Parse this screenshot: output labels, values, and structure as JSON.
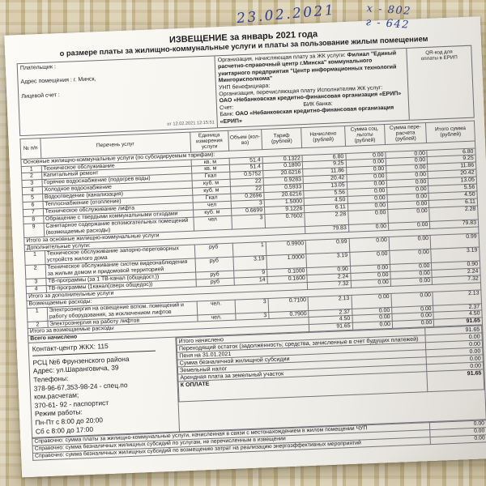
{
  "handwriting": {
    "date": "23.02.2021",
    "note_line1": "х - 802",
    "note_line2": "г - 642"
  },
  "title": {
    "line1": "ИЗВЕЩЕНИЕ за январь 2021 года",
    "line2": "о размере платы за  жилищно-коммунальные услуги и платы за пользование жилым помещением"
  },
  "payer": {
    "payer_label": "Плательщик :",
    "address_label": "Адрес помещения : г. Минск,",
    "account_label": "Лицевой счет :",
    "print_timestamp": "от 12.02.2021 12:15:51"
  },
  "organization": {
    "charging_label": "Организация, начисляющая плату за ЖК услуги:",
    "charging_name": "Филиал \"Единый расчетно-справочный центр г.Минска\" коммунального унитарного предприятия \"Центр информационных технологий Мингорисполкома\"",
    "unp_label": "УНП бенефициара:",
    "transfer_label": "Организация, перечисляющая плату Исполнителям ЖК услуг:",
    "transfer_name": "ОАО «Небанковская кредитно-финансовая организация «ЕРИП»",
    "account_label": "Счет:",
    "bik_label": "БИК банка:",
    "bank_label": "Банк:",
    "bank_name": "ОАО «Небанковская кредитно-финансовая организация «ЕРИП»"
  },
  "qr": {
    "label1": "QR-код для",
    "label2": "оплаты в ЕРИП"
  },
  "table": {
    "headers": [
      "№ п/п",
      "Перечень услуг",
      "Единица измерения услуги",
      "Объем (кол-во)",
      "Тариф (рублей)",
      "Начислено (рублей)",
      "Сумма соц. льготы (рублей)",
      "Сумма пере- расчета (рублей)",
      "Итого сумма (рублей)"
    ],
    "sections": [
      {
        "header": "Основные жилищно-коммунальные услуги (по субсидируемым тарифам):",
        "rows": [
          {
            "num": "1",
            "name": "Техническое обслуживание",
            "unit": "кв. м",
            "volume": "51.4",
            "tariff": "0.1322",
            "accrued": "6.80",
            "benefit": "0.00",
            "recalc": "0.00",
            "total": "6.80"
          },
          {
            "num": "2",
            "name": "Капитальный ремонт",
            "unit": "кв. м",
            "volume": "51.4",
            "tariff": "0.1800",
            "accrued": "9.25",
            "benefit": "0.00",
            "recalc": "0.00",
            "total": "9.25"
          },
          {
            "num": "3",
            "name": "Горячее водоснабжение (подогрев воды)",
            "unit": "Гкал",
            "volume": "0.5752",
            "tariff": "20.6216",
            "accrued": "11.86",
            "benefit": "0.00",
            "recalc": "0.00",
            "total": "11.86"
          },
          {
            "num": "4",
            "name": "Холодное водоснабжение",
            "unit": "куб. м",
            "volume": "22",
            "tariff": "0.9283",
            "accrued": "20.42",
            "benefit": "0.00",
            "recalc": "0.00",
            "total": "20.42"
          },
          {
            "num": "5",
            "name": "Водоотведение (канализация)",
            "unit": "куб. м",
            "volume": "22",
            "tariff": "0.5933",
            "accrued": "13.05",
            "benefit": "0.00",
            "recalc": "0.00",
            "total": "13.05"
          },
          {
            "num": "6",
            "name": "Теплоснабжение (отопление)",
            "unit": "Гкал",
            "volume": "0.2696",
            "tariff": "20.6216",
            "accrued": "5.56",
            "benefit": "0.00",
            "recalc": "0.00",
            "total": "5.56"
          },
          {
            "num": "7",
            "name": "Техническое обслуживание лифта",
            "unit": "чел",
            "volume": "3",
            "tariff": "1.5000",
            "accrued": "4.50",
            "benefit": "0.00",
            "recalc": "0.00",
            "total": "4.50"
          },
          {
            "num": "8",
            "name": "Обращение с твердыми коммунальными отходами",
            "unit": "куб. м",
            "volume": "0.6699",
            "tariff": "9.1226",
            "accrued": "6.11",
            "benefit": "0.00",
            "recalc": "0.00",
            "total": "6.11"
          },
          {
            "num": "9",
            "name": "Санитарное содержание вспомогательных помещений (возмещаемые расходы)",
            "unit": "чел",
            "volume": "3",
            "tariff": "0.7602",
            "accrued": "2.28",
            "benefit": "0.00",
            "recalc": "0.00",
            "total": "2.28"
          }
        ],
        "subtotal": {
          "label": "Итого за основные жилищно-коммунальные услуги",
          "accrued": "79.83",
          "benefit": "0.00",
          "recalc": "0.00",
          "total": "79.83"
        }
      },
      {
        "header": "Дополнительные услуги:",
        "rows": [
          {
            "num": "1",
            "name": "Техническое обслуживание запорно-переговорных устройств жилого дома",
            "unit": "руб",
            "volume": "1",
            "tariff": "0.9900",
            "accrued": "0.99",
            "benefit": "0.00",
            "recalc": "0.00",
            "total": "0.99"
          },
          {
            "num": "2",
            "name": "Техническое обслуживание систем видеонаблюдения за жилым домом и придомовой территорией",
            "unit": "руб",
            "volume": "3.19",
            "tariff": "1.0000",
            "accrued": "3.19",
            "benefit": "0.00",
            "recalc": "0.00",
            "total": "3.19"
          },
          {
            "num": "3",
            "name": "ТВ-программы (за 1 ТВ-канал (общедост.))",
            "unit": "руб",
            "volume": "9",
            "tariff": "0.1000",
            "accrued": "0.90",
            "benefit": "0.00",
            "recalc": "0.00",
            "total": "0.90"
          },
          {
            "num": "4",
            "name": "ТВ-программы (1канал(сверх общедос))",
            "unit": "руб",
            "volume": "14",
            "tariff": "0.1600",
            "accrued": "2.24",
            "benefit": "0.00",
            "recalc": "0.00",
            "total": "2.24"
          }
        ],
        "subtotal": {
          "label": "Итого за дополнительные услуги",
          "accrued": "7.32",
          "benefit": "0.00",
          "recalc": "0.00",
          "total": "7.32"
        }
      },
      {
        "header": "Возмещаемые расходы:",
        "rows": [
          {
            "num": "1",
            "name": "Электроэнергия на освещение вспом. помещений и работу оборудования, за исключением лифтов",
            "unit": "чел.",
            "volume": "3",
            "tariff": "0.7100",
            "accrued": "2.13",
            "benefit": "0.00",
            "recalc": "0.00",
            "total": "2.13"
          },
          {
            "num": "2",
            "name": "Электроэнергия на работу лифтов",
            "unit": "чел.",
            "volume": "3",
            "tariff": "0.7900",
            "accrued": "2.37",
            "benefit": "0.00",
            "recalc": "0.00",
            "total": "2.37"
          }
        ],
        "subtotal": {
          "label": "Итого за возмещаемые расходы",
          "accrued": "4.50",
          "benefit": "0.00",
          "recalc": "0.00",
          "total": "4.50"
        }
      }
    ],
    "grand_total": {
      "label": "Всего начислено",
      "accrued": "91.65",
      "benefit": "0.00",
      "recalc": "0.00",
      "total": "91.65"
    }
  },
  "contact": {
    "line1": "Контакт-центр ЖКХ: 115",
    "lines": [
      "РСЦ №6 Фрунзенского района",
      "Адрес: ул.Шаранговича, 39",
      "Телефоны:",
      "378-96-67,353-98-24 - спец.по",
      "ком.расчетам;",
      "370-61- 92 - паспортист",
      "Режим работы:",
      "Пн-Пт с 8:00 до 20:00",
      "Сб с 8:00 до 17:00"
    ]
  },
  "summary": {
    "rows": [
      {
        "label": "Итого начислено",
        "value": "91.65"
      },
      {
        "label": "Переходящий остаток (задолженность; средства, зачисленные в счет будущих платежей)",
        "value": "0.00"
      },
      {
        "label": "Пеня на 31.01.2021",
        "value": "0.00"
      },
      {
        "label": "Сумма безналичной жилищной субсидии",
        "value": "0.00"
      },
      {
        "label": "Земельный налог",
        "value": "0.00"
      },
      {
        "label": "Арендная плата за земельный участок",
        "value": "0.00"
      }
    ],
    "to_pay": {
      "label": "К ОПЛАТЕ",
      "value": "91.65"
    }
  },
  "reference_rows": [
    {
      "label": "Справочно: сумма платы за жилищно-коммунальные услуги, начисленная в связи с местонахождением в жилом помещении ЧУП",
      "value": "0.00"
    },
    {
      "label": "Справочно: сумма безналичных жилищных субсидий по услугам, не перечисленным в извещении",
      "value": "0.00"
    },
    {
      "label": "Справочно: сумма безналичных жилищных субсидий по возмещению затрат на реализацию энергоэффективных мероприятий",
      "value": "0.00"
    }
  ],
  "colors": {
    "ink": "#2c3e8e",
    "paper": "#f7f5ef",
    "background": "#d2c49e"
  }
}
